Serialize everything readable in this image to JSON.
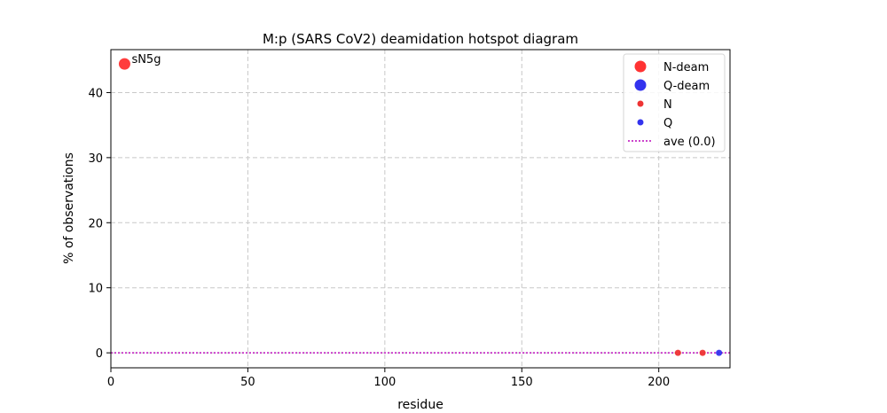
{
  "chart_data": {
    "type": "scatter",
    "title": "M:p (SARS CoV2) deamidation hotspot diagram",
    "xlabel": "residue",
    "ylabel": "% of observations",
    "xlim": [
      0,
      226
    ],
    "ylim": [
      -2.3,
      46.6
    ],
    "xticks": [
      0,
      50,
      100,
      150,
      200
    ],
    "yticks": [
      0,
      10,
      20,
      30,
      40
    ],
    "grid": true,
    "legend_position": "top-right",
    "series": [
      {
        "name": "N-deam",
        "marker": "large-circle",
        "color": "#ff3333",
        "points": [
          {
            "x": 5,
            "y": 44.4,
            "label": "sN5g"
          }
        ]
      },
      {
        "name": "Q-deam",
        "marker": "large-circle",
        "color": "#3333ee",
        "points": []
      },
      {
        "name": "N",
        "marker": "small-circle",
        "color": "#ee3333",
        "points": [
          {
            "x": 207,
            "y": 0.0
          },
          {
            "x": 216,
            "y": 0.0
          }
        ]
      },
      {
        "name": "Q",
        "marker": "small-circle",
        "color": "#3333ee",
        "points": [
          {
            "x": 222,
            "y": 0.0
          }
        ]
      }
    ],
    "reference_line": {
      "name": "ave (0.0)",
      "y": 0.0,
      "style": "dotted",
      "color": "#cc44cc"
    }
  }
}
